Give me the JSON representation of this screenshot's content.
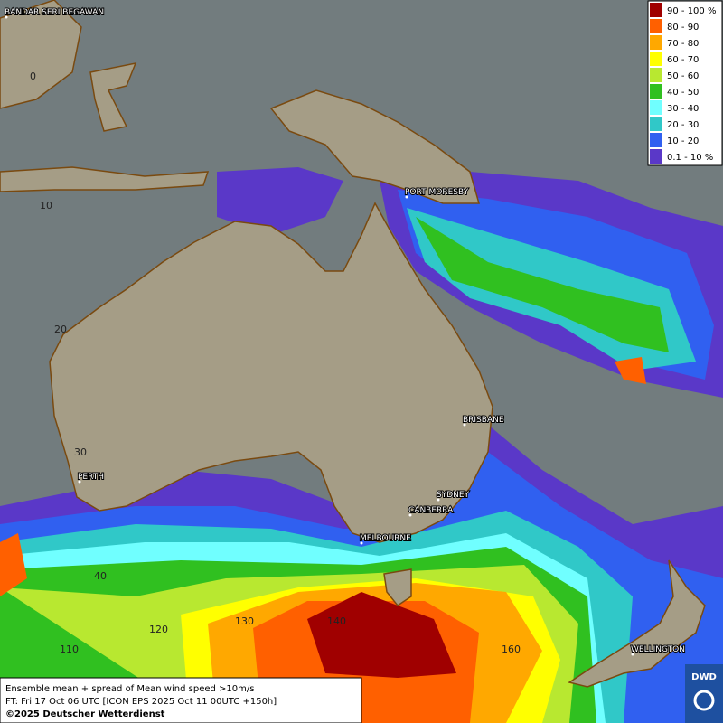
{
  "map": {
    "places": [
      {
        "label": "BANDAR SERI BEGAWAN"
      },
      {
        "label": "PORT MORESBY"
      },
      {
        "label": "BRISBANE"
      },
      {
        "label": "SYDNEY"
      },
      {
        "label": "CANBERRA"
      },
      {
        "label": "MELBOURNE"
      },
      {
        "label": "PERTH"
      },
      {
        "label": "WELLINGTON"
      }
    ],
    "grid_labels": [
      0,
      10,
      20,
      30,
      40,
      110,
      120,
      130,
      140,
      160
    ],
    "legend": [
      {
        "label": "90 - 100 %",
        "color": "#a00000"
      },
      {
        "label": "80 - 90",
        "color": "#ff6000"
      },
      {
        "label": "70 - 80",
        "color": "#ffa800"
      },
      {
        "label": "60 - 70",
        "color": "#ffff00"
      },
      {
        "label": "50 - 60",
        "color": "#b8e830"
      },
      {
        "label": "40 - 50",
        "color": "#30c020"
      },
      {
        "label": "30 - 40",
        "color": "#70ffff"
      },
      {
        "label": "20 - 30",
        "color": "#30c8c8"
      },
      {
        "label": "10 - 20",
        "color": "#3060f0"
      },
      {
        "label": "0.1 - 10 %",
        "color": "#5a38c8"
      }
    ],
    "caption": [
      "Ensemble mean + spread of Mean wind speed >10m/s",
      "FT: Fri 17 Oct 06 UTC [ICON EPS 2025 Oct 11 00UTC +150h]",
      "©2025 Deutscher Wetterdienst"
    ],
    "logo": "DWD"
  }
}
